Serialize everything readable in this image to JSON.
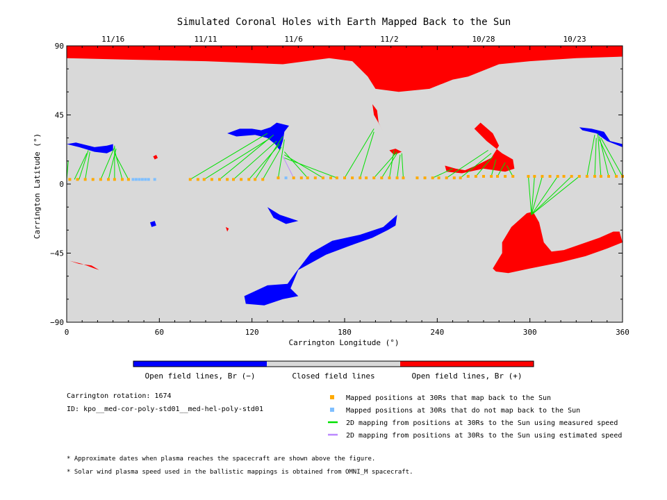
{
  "chart_data": {
    "type": "scatter",
    "title": "Simulated Coronal Holes with Earth Mapped Back to the Sun",
    "xlabel": "Carrington Longitude (°)",
    "ylabel": "Carrington Latitude (°)",
    "xlim": [
      0,
      360
    ],
    "ylim": [
      -90,
      90
    ],
    "x_ticks": [
      0,
      60,
      120,
      180,
      240,
      300,
      360
    ],
    "y_ticks": [
      90,
      45,
      0,
      -45,
      -90
    ],
    "y_tick_labels": [
      "90",
      "45",
      "0",
      "−45",
      "−90"
    ],
    "top_date_ticks": [
      {
        "label": "11/16",
        "lon": 30
      },
      {
        "label": "11/11",
        "lon": 90
      },
      {
        "label": "11/6",
        "lon": 147
      },
      {
        "label": "11/2",
        "lon": 209
      },
      {
        "label": "10/28",
        "lon": 270
      },
      {
        "label": "10/23",
        "lon": 329
      }
    ],
    "grid": false,
    "colorbar": {
      "segments": [
        {
          "label": "Open field lines, Br (−)",
          "color": "#0000ff"
        },
        {
          "label": "Closed field lines",
          "color": "#d9d9d9"
        },
        {
          "label": "Open field lines, Br (+)",
          "color": "#ff0000"
        }
      ]
    },
    "colors": {
      "background": "#d9d9d9",
      "negative": "#0000ff",
      "positive": "#ff0000",
      "mapped_point": "#ffaa00",
      "unmapped_point": "#7fbfff",
      "measured_line": "#00e000",
      "estimated_line": "#bb88ff"
    },
    "legend": [
      {
        "marker": "square",
        "color": "#ffaa00",
        "label": "Mapped positions at 30Rs that map back to the Sun"
      },
      {
        "marker": "square",
        "color": "#7fbfff",
        "label": "Mapped positions at 30Rs that do not map back to the Sun"
      },
      {
        "marker": "line",
        "color": "#00e000",
        "label": "2D mapping from positions at 30Rs to the Sun using measured speed"
      },
      {
        "marker": "line",
        "color": "#bb88ff",
        "label": "2D mapping from positions at 30Rs to the Sun using estimated speed"
      }
    ],
    "series": [
      {
        "name": "Mapped positions at 30Rs that map back to the Sun",
        "marker": "square",
        "color": "#ffaa00",
        "x": [
          2,
          7,
          12,
          17,
          22,
          27,
          31,
          36,
          40,
          80,
          85,
          89,
          94,
          99,
          104,
          108,
          113,
          118,
          122,
          127,
          137,
          147,
          152,
          156,
          161,
          166,
          171,
          175,
          180,
          185,
          190,
          194,
          199,
          204,
          209,
          214,
          218,
          227,
          232,
          237,
          241,
          246,
          251,
          255,
          260,
          265,
          270,
          275,
          279,
          284,
          289,
          299,
          303,
          308,
          313,
          318,
          322,
          327,
          332,
          337,
          342,
          346,
          351,
          356,
          360
        ],
        "y": [
          3,
          3,
          3,
          3,
          3,
          3,
          3,
          3,
          3,
          3,
          3,
          3,
          3,
          3,
          3,
          3,
          3,
          3,
          3,
          3,
          4,
          4,
          4,
          4,
          4,
          4,
          4,
          4,
          4,
          4,
          4,
          4,
          4,
          4,
          4,
          4,
          4,
          4,
          4,
          4,
          4,
          4,
          4,
          4,
          5,
          5,
          5,
          5,
          5,
          5,
          5,
          5,
          5,
          5,
          5,
          5,
          5,
          5,
          5,
          5,
          5,
          5,
          5,
          5,
          5
        ]
      },
      {
        "name": "Mapped positions at 30Rs that do not map back to the Sun",
        "marker": "square",
        "color": "#7fbfff",
        "x": [
          43,
          45,
          47,
          49,
          51,
          53,
          57,
          142
        ],
        "y": [
          3,
          3,
          3,
          3,
          3,
          3,
          3,
          4
        ]
      }
    ],
    "mapping_lines": [
      {
        "x0": 0,
        "y0": 3,
        "x1": 1,
        "y1": 15,
        "type": "measured"
      },
      {
        "x0": 5,
        "y0": 3,
        "x1": 13,
        "y1": 20,
        "type": "measured"
      },
      {
        "x0": 8,
        "y0": 3,
        "x1": 14,
        "y1": 22,
        "type": "measured"
      },
      {
        "x0": 12,
        "y0": 3,
        "x1": 15,
        "y1": 21,
        "type": "measured"
      },
      {
        "x0": 22,
        "y0": 3,
        "x1": 31,
        "y1": 24,
        "type": "measured"
      },
      {
        "x0": 27,
        "y0": 3,
        "x1": 32,
        "y1": 23,
        "type": "measured"
      },
      {
        "x0": 31,
        "y0": 3,
        "x1": 31,
        "y1": 25,
        "type": "measured"
      },
      {
        "x0": 36,
        "y0": 3,
        "x1": 31,
        "y1": 22,
        "type": "measured"
      },
      {
        "x0": 40,
        "y0": 3,
        "x1": 31,
        "y1": 20,
        "type": "measured"
      },
      {
        "x0": 80,
        "y0": 3,
        "x1": 130,
        "y1": 33,
        "type": "measured"
      },
      {
        "x0": 89,
        "y0": 3,
        "x1": 132,
        "y1": 30,
        "type": "measured"
      },
      {
        "x0": 99,
        "y0": 3,
        "x1": 134,
        "y1": 32,
        "type": "measured"
      },
      {
        "x0": 108,
        "y0": 3,
        "x1": 136,
        "y1": 28,
        "type": "measured"
      },
      {
        "x0": 118,
        "y0": 3,
        "x1": 138,
        "y1": 26,
        "type": "measured"
      },
      {
        "x0": 122,
        "y0": 3,
        "x1": 140,
        "y1": 31,
        "type": "measured"
      },
      {
        "x0": 127,
        "y0": 3,
        "x1": 139,
        "y1": 24,
        "type": "measured"
      },
      {
        "x0": 137,
        "y0": 4,
        "x1": 141,
        "y1": 29,
        "type": "measured"
      },
      {
        "x0": 147,
        "y0": 4,
        "x1": 140,
        "y1": 18,
        "type": "estimated"
      },
      {
        "x0": 156,
        "y0": 4,
        "x1": 141,
        "y1": 21,
        "type": "measured"
      },
      {
        "x0": 166,
        "y0": 4,
        "x1": 141,
        "y1": 19,
        "type": "measured"
      },
      {
        "x0": 175,
        "y0": 4,
        "x1": 141,
        "y1": 17,
        "type": "measured"
      },
      {
        "x0": 180,
        "y0": 4,
        "x1": 199,
        "y1": 36,
        "type": "measured"
      },
      {
        "x0": 190,
        "y0": 4,
        "x1": 199,
        "y1": 34,
        "type": "measured"
      },
      {
        "x0": 199,
        "y0": 4,
        "x1": 214,
        "y1": 21,
        "type": "measured"
      },
      {
        "x0": 204,
        "y0": 4,
        "x1": 214,
        "y1": 20,
        "type": "measured"
      },
      {
        "x0": 209,
        "y0": 4,
        "x1": 212,
        "y1": 22,
        "type": "measured"
      },
      {
        "x0": 214,
        "y0": 4,
        "x1": 216,
        "y1": 19,
        "type": "measured"
      },
      {
        "x0": 218,
        "y0": 4,
        "x1": 217,
        "y1": 20,
        "type": "measured"
      },
      {
        "x0": 237,
        "y0": 4,
        "x1": 250,
        "y1": 10,
        "type": "measured"
      },
      {
        "x0": 246,
        "y0": 4,
        "x1": 273,
        "y1": 22,
        "type": "measured"
      },
      {
        "x0": 255,
        "y0": 4,
        "x1": 275,
        "y1": 20,
        "type": "measured"
      },
      {
        "x0": 265,
        "y0": 5,
        "x1": 276,
        "y1": 18,
        "type": "measured"
      },
      {
        "x0": 275,
        "y0": 5,
        "x1": 278,
        "y1": 16,
        "type": "measured"
      },
      {
        "x0": 279,
        "y0": 5,
        "x1": 284,
        "y1": 14,
        "type": "measured"
      },
      {
        "x0": 289,
        "y0": 5,
        "x1": 285,
        "y1": 12,
        "type": "measured"
      },
      {
        "x0": 299,
        "y0": 5,
        "x1": 301,
        "y1": -20,
        "type": "measured"
      },
      {
        "x0": 303,
        "y0": 5,
        "x1": 301,
        "y1": -20,
        "type": "measured"
      },
      {
        "x0": 308,
        "y0": 5,
        "x1": 301,
        "y1": -20,
        "type": "measured"
      },
      {
        "x0": 318,
        "y0": 5,
        "x1": 301,
        "y1": -20,
        "type": "measured"
      },
      {
        "x0": 327,
        "y0": 5,
        "x1": 301,
        "y1": -20,
        "type": "measured"
      },
      {
        "x0": 332,
        "y0": 5,
        "x1": 301,
        "y1": -20,
        "type": "measured"
      },
      {
        "x0": 337,
        "y0": 5,
        "x1": 342,
        "y1": 32,
        "type": "measured"
      },
      {
        "x0": 342,
        "y0": 5,
        "x1": 343,
        "y1": 30,
        "type": "measured"
      },
      {
        "x0": 346,
        "y0": 5,
        "x1": 344,
        "y1": 33,
        "type": "measured"
      },
      {
        "x0": 351,
        "y0": 5,
        "x1": 345,
        "y1": 31,
        "type": "measured"
      },
      {
        "x0": 356,
        "y0": 5,
        "x1": 345,
        "y1": 29,
        "type": "measured"
      },
      {
        "x0": 360,
        "y0": 5,
        "x1": 346,
        "y1": 30,
        "type": "measured"
      }
    ],
    "regions": [
      {
        "color": "positive",
        "points": [
          [
            0,
            90
          ],
          [
            360,
            90
          ],
          [
            360,
            83
          ],
          [
            330,
            82
          ],
          [
            300,
            80
          ],
          [
            280,
            78
          ],
          [
            260,
            70
          ],
          [
            250,
            68
          ],
          [
            235,
            62
          ],
          [
            215,
            60
          ],
          [
            200,
            62
          ],
          [
            195,
            70
          ],
          [
            185,
            80
          ],
          [
            170,
            82
          ],
          [
            140,
            78
          ],
          [
            90,
            80
          ],
          [
            40,
            81
          ],
          [
            0,
            82
          ]
        ]
      },
      {
        "color": "negative",
        "points": [
          [
            0,
            26
          ],
          [
            8,
            24
          ],
          [
            18,
            21
          ],
          [
            26,
            20
          ],
          [
            30,
            22
          ],
          [
            30,
            26
          ],
          [
            26,
            25
          ],
          [
            18,
            24
          ],
          [
            6,
            27
          ]
        ]
      },
      {
        "color": "negative",
        "points": [
          [
            104,
            33
          ],
          [
            112,
            36
          ],
          [
            120,
            36
          ],
          [
            126,
            35
          ],
          [
            132,
            37
          ],
          [
            136,
            40
          ],
          [
            144,
            38
          ],
          [
            141,
            34
          ],
          [
            140,
            28
          ],
          [
            138,
            22
          ],
          [
            135,
            26
          ],
          [
            130,
            30
          ],
          [
            122,
            32
          ],
          [
            110,
            31
          ]
        ]
      },
      {
        "color": "positive",
        "points": [
          [
            198,
            52
          ],
          [
            201,
            48
          ],
          [
            202,
            40
          ],
          [
            205,
            34
          ],
          [
            203,
            38
          ],
          [
            199,
            45
          ]
        ]
      },
      {
        "color": "positive",
        "points": [
          [
            209,
            22
          ],
          [
            213,
            23
          ],
          [
            217,
            21
          ],
          [
            212,
            19
          ]
        ]
      },
      {
        "color": "positive",
        "points": [
          [
            245,
            12
          ],
          [
            252,
            10
          ],
          [
            258,
            9
          ],
          [
            265,
            12
          ],
          [
            275,
            17
          ],
          [
            280,
            25
          ],
          [
            276,
            33
          ],
          [
            268,
            40
          ],
          [
            264,
            36
          ],
          [
            272,
            28
          ],
          [
            282,
            20
          ],
          [
            289,
            16
          ],
          [
            290,
            10
          ],
          [
            284,
            8
          ],
          [
            270,
            10
          ],
          [
            256,
            7
          ],
          [
            246,
            8
          ]
        ]
      },
      {
        "color": "negative",
        "points": [
          [
            332,
            37
          ],
          [
            340,
            36
          ],
          [
            348,
            34
          ],
          [
            352,
            28
          ],
          [
            360,
            26
          ],
          [
            360,
            24
          ],
          [
            350,
            28
          ],
          [
            343,
            33
          ],
          [
            334,
            35
          ]
        ]
      },
      {
        "color": "positive",
        "points": [
          [
            56,
            18
          ],
          [
            58,
            19
          ],
          [
            59,
            17
          ],
          [
            57,
            16
          ]
        ]
      },
      {
        "color": "negative",
        "points": [
          [
            130,
            -15
          ],
          [
            138,
            -20
          ],
          [
            150,
            -24
          ],
          [
            142,
            -26
          ],
          [
            134,
            -22
          ]
        ]
      },
      {
        "color": "negative",
        "points": [
          [
            54,
            -25
          ],
          [
            57,
            -24
          ],
          [
            58,
            -27
          ],
          [
            55,
            -28
          ]
        ]
      },
      {
        "color": "positive",
        "points": [
          [
            103,
            -28
          ],
          [
            105,
            -29
          ],
          [
            104,
            -31
          ]
        ]
      },
      {
        "color": "negative",
        "points": [
          [
            115,
            -73
          ],
          [
            130,
            -66
          ],
          [
            143,
            -65
          ],
          [
            148,
            -58
          ],
          [
            158,
            -45
          ],
          [
            172,
            -37
          ],
          [
            190,
            -33
          ],
          [
            205,
            -28
          ],
          [
            214,
            -20
          ],
          [
            213,
            -27
          ],
          [
            208,
            -30
          ],
          [
            198,
            -35
          ],
          [
            184,
            -40
          ],
          [
            168,
            -46
          ],
          [
            150,
            -56
          ],
          [
            145,
            -68
          ],
          [
            150,
            -73
          ],
          [
            140,
            -75
          ],
          [
            128,
            -79
          ],
          [
            116,
            -78
          ]
        ]
      },
      {
        "color": "positive",
        "points": [
          [
            276,
            -55
          ],
          [
            282,
            -45
          ],
          [
            282,
            -38
          ],
          [
            288,
            -28
          ],
          [
            298,
            -19
          ],
          [
            302,
            -18
          ],
          [
            306,
            -25
          ],
          [
            309,
            -38
          ],
          [
            314,
            -44
          ],
          [
            322,
            -43
          ],
          [
            345,
            -35
          ],
          [
            354,
            -31
          ],
          [
            358,
            -31
          ],
          [
            360,
            -38
          ],
          [
            350,
            -42
          ],
          [
            336,
            -47
          ],
          [
            320,
            -51
          ],
          [
            300,
            -55
          ],
          [
            286,
            -58
          ],
          [
            278,
            -57
          ]
        ]
      },
      {
        "color": "positive",
        "points": [
          [
            2,
            -50
          ],
          [
            10,
            -52
          ],
          [
            18,
            -55
          ],
          [
            21,
            -56
          ],
          [
            16,
            -53
          ],
          [
            8,
            -52
          ]
        ]
      }
    ]
  },
  "footer": {
    "carrington_rotation": "Carrington rotation: 1674",
    "model_id": "ID: kpo__med-cor-poly-std01__med-hel-poly-std01",
    "note1": "* Approximate dates when plasma reaches the spacecraft are shown above the figure.",
    "note2": "* Solar wind plasma speed used in the ballistic mappings is obtained from OMNI_M spacecraft."
  }
}
